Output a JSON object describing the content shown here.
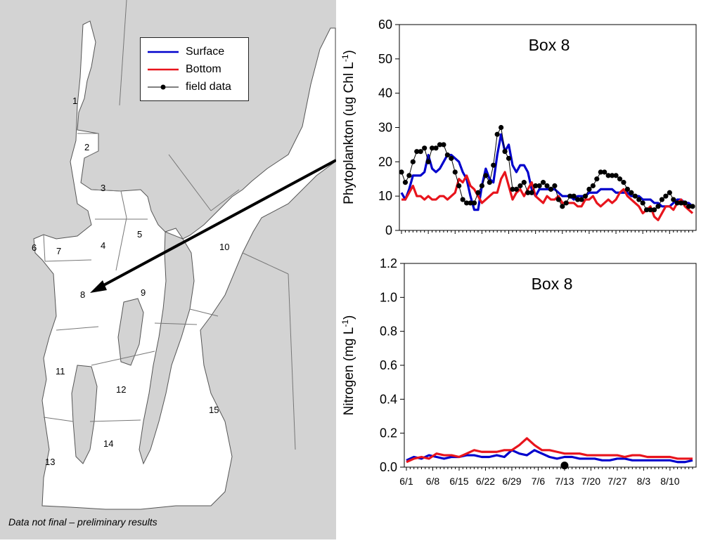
{
  "map": {
    "box_labels": [
      "1",
      "2",
      "3",
      "4",
      "5",
      "6",
      "7",
      "8",
      "9",
      "10",
      "11",
      "12",
      "13",
      "14",
      "15"
    ],
    "colors": {
      "sea": "#ffffff",
      "land": "#d3d3d3",
      "lines": "#777777",
      "arrow": "#000000"
    }
  },
  "legend": {
    "items": [
      {
        "label": "Surface",
        "color": "#0000cc",
        "style": "line"
      },
      {
        "label": "Bottom",
        "color": "#e8141c",
        "style": "line"
      },
      {
        "label": "field data",
        "color": "#000000",
        "style": "line-dot"
      }
    ]
  },
  "footnote": "Data not final – preliminary results",
  "chart_data": [
    {
      "type": "line",
      "title": "Box 8",
      "ylabel_main": "Phytoplankton (ug Chl L",
      "ylabel_sup": "-1",
      "ylabel_end": ")",
      "ylim": [
        0,
        60
      ],
      "yticks": [
        "0",
        "10",
        "20",
        "30",
        "40",
        "50",
        "60"
      ],
      "xlim": [
        0,
        76
      ],
      "series": [
        {
          "name": "Surface",
          "color": "#0000cc",
          "x": [
            0,
            1,
            2,
            3,
            4,
            5,
            6,
            7,
            8,
            9,
            10,
            11,
            12,
            13,
            14,
            15,
            16,
            17,
            18,
            19,
            20,
            21,
            22,
            23,
            24,
            25,
            26,
            27,
            28,
            29,
            30,
            31,
            32,
            33,
            34,
            35,
            36,
            37,
            38,
            39,
            40,
            41,
            42,
            43,
            44,
            45,
            46,
            47,
            48,
            49,
            50,
            51,
            52,
            53,
            54,
            55,
            56,
            57,
            58,
            59,
            60,
            61,
            62,
            63,
            64,
            65,
            66,
            67,
            68,
            69,
            70,
            71,
            72,
            73,
            74,
            75,
            76
          ],
          "y": [
            11,
            9,
            12,
            16,
            16,
            16,
            17,
            22,
            18,
            17,
            18,
            20,
            22,
            22,
            21,
            20,
            17,
            15,
            10,
            6,
            6,
            13,
            18,
            15,
            14,
            22,
            28,
            23,
            25,
            19,
            17,
            19,
            19,
            17,
            12,
            10,
            12,
            12,
            12,
            12,
            12,
            11,
            10,
            10,
            10,
            9,
            10,
            10,
            10,
            11,
            11,
            11,
            12,
            12,
            12,
            12,
            11,
            11,
            11,
            11,
            10,
            10,
            10,
            9,
            9,
            9,
            8,
            8,
            7,
            7,
            7,
            8,
            9,
            9,
            8,
            8,
            7
          ]
        },
        {
          "name": "Bottom",
          "color": "#e8141c",
          "x": [
            0,
            1,
            2,
            3,
            4,
            5,
            6,
            7,
            8,
            9,
            10,
            11,
            12,
            13,
            14,
            15,
            16,
            17,
            18,
            19,
            20,
            21,
            22,
            23,
            24,
            25,
            26,
            27,
            28,
            29,
            30,
            31,
            32,
            33,
            34,
            35,
            36,
            37,
            38,
            39,
            40,
            41,
            42,
            43,
            44,
            45,
            46,
            47,
            48,
            49,
            50,
            51,
            52,
            53,
            54,
            55,
            56,
            57,
            58,
            59,
            60,
            61,
            62,
            63,
            64,
            65,
            66,
            67,
            68,
            69,
            70,
            71,
            72,
            73,
            74,
            75,
            76
          ],
          "y": [
            9,
            9,
            11,
            13,
            10,
            10,
            9,
            10,
            9,
            9,
            10,
            10,
            9,
            10,
            11,
            15,
            14,
            16,
            13,
            12,
            10,
            8,
            9,
            10,
            11,
            11,
            15,
            17,
            13,
            9,
            11,
            12,
            10,
            12,
            14,
            10,
            9,
            8,
            10,
            9,
            9,
            10,
            8,
            8,
            8,
            8,
            7,
            7,
            9,
            9,
            10,
            8,
            7,
            8,
            9,
            8,
            9,
            11,
            12,
            10,
            9,
            8,
            7,
            5,
            6,
            7,
            4,
            3,
            5,
            7,
            7,
            6,
            8,
            9,
            7,
            6,
            5
          ]
        },
        {
          "name": "field data",
          "color": "#000000",
          "marker": true,
          "x": [
            0,
            1,
            2,
            3,
            4,
            5,
            6,
            7,
            8,
            9,
            10,
            11,
            12,
            13,
            14,
            15,
            16,
            17,
            18,
            19,
            20,
            21,
            22,
            23,
            24,
            25,
            26,
            27,
            28,
            29,
            30,
            31,
            32,
            33,
            34,
            35,
            36,
            37,
            38,
            39,
            40,
            41,
            42,
            43,
            44,
            45,
            46,
            47,
            48,
            49,
            50,
            51,
            52,
            53,
            54,
            55,
            56,
            57,
            58,
            59,
            60,
            61,
            62,
            63,
            64,
            65,
            66,
            67,
            68,
            69,
            70,
            71,
            72,
            73,
            74,
            75,
            76
          ],
          "y": [
            17,
            14,
            16,
            20,
            23,
            23,
            24,
            20,
            24,
            24,
            25,
            25,
            22,
            21,
            17,
            13,
            9,
            8,
            8,
            8,
            11,
            13,
            16,
            14,
            19,
            28,
            30,
            23,
            21,
            12,
            12,
            13,
            14,
            11,
            11,
            13,
            13,
            14,
            13,
            12,
            13,
            9,
            7,
            8,
            10,
            10,
            9,
            9,
            10,
            12,
            13,
            15,
            17,
            17,
            16,
            16,
            16,
            15,
            14,
            12,
            11,
            10,
            9,
            8,
            6,
            6,
            6,
            7,
            9,
            10,
            11,
            9,
            8,
            8,
            8,
            7,
            7
          ]
        }
      ]
    },
    {
      "type": "line",
      "title": "Box 8",
      "ylabel_main": "Nitrogen (mg L",
      "ylabel_sup": "-1",
      "ylabel_end": ")",
      "ylim": [
        0,
        1.2
      ],
      "yticks": [
        "0.0",
        "0.2",
        "0.4",
        "0.6",
        "0.8",
        "1.0",
        "1.2"
      ],
      "xlim": [
        0,
        76
      ],
      "xtick_labels": [
        "6/1",
        "6/8",
        "6/15",
        "6/22",
        "6/29",
        "7/6",
        "7/13",
        "7/20",
        "7/27",
        "8/3",
        "8/10"
      ],
      "xtick_values": [
        0,
        7,
        14,
        21,
        28,
        35,
        42,
        49,
        56,
        63,
        70
      ],
      "series": [
        {
          "name": "Surface",
          "color": "#0000cc",
          "x": [
            0,
            2,
            4,
            6,
            8,
            10,
            12,
            14,
            16,
            18,
            20,
            22,
            24,
            26,
            28,
            30,
            32,
            34,
            36,
            38,
            40,
            42,
            44,
            46,
            48,
            50,
            52,
            54,
            56,
            58,
            60,
            62,
            64,
            66,
            68,
            70,
            72,
            74,
            76
          ],
          "y": [
            0.04,
            0.06,
            0.05,
            0.07,
            0.06,
            0.05,
            0.06,
            0.06,
            0.07,
            0.07,
            0.06,
            0.06,
            0.07,
            0.06,
            0.1,
            0.08,
            0.07,
            0.1,
            0.08,
            0.06,
            0.05,
            0.06,
            0.06,
            0.05,
            0.05,
            0.05,
            0.04,
            0.04,
            0.05,
            0.05,
            0.04,
            0.04,
            0.04,
            0.04,
            0.04,
            0.04,
            0.03,
            0.03,
            0.04
          ]
        },
        {
          "name": "Bottom",
          "color": "#e8141c",
          "x": [
            0,
            2,
            4,
            6,
            8,
            10,
            12,
            14,
            16,
            18,
            20,
            22,
            24,
            26,
            28,
            30,
            32,
            34,
            36,
            38,
            40,
            42,
            44,
            46,
            48,
            50,
            52,
            54,
            56,
            58,
            60,
            62,
            64,
            66,
            68,
            70,
            72,
            74,
            76
          ],
          "y": [
            0.03,
            0.05,
            0.06,
            0.05,
            0.08,
            0.07,
            0.07,
            0.06,
            0.08,
            0.1,
            0.09,
            0.09,
            0.09,
            0.1,
            0.1,
            0.13,
            0.17,
            0.13,
            0.1,
            0.1,
            0.09,
            0.08,
            0.08,
            0.08,
            0.07,
            0.07,
            0.07,
            0.07,
            0.07,
            0.06,
            0.07,
            0.07,
            0.06,
            0.06,
            0.06,
            0.06,
            0.05,
            0.05,
            0.05
          ]
        },
        {
          "name": "field data",
          "color": "#000000",
          "marker": true,
          "x": [
            42
          ],
          "y": [
            0.01
          ]
        }
      ]
    }
  ]
}
